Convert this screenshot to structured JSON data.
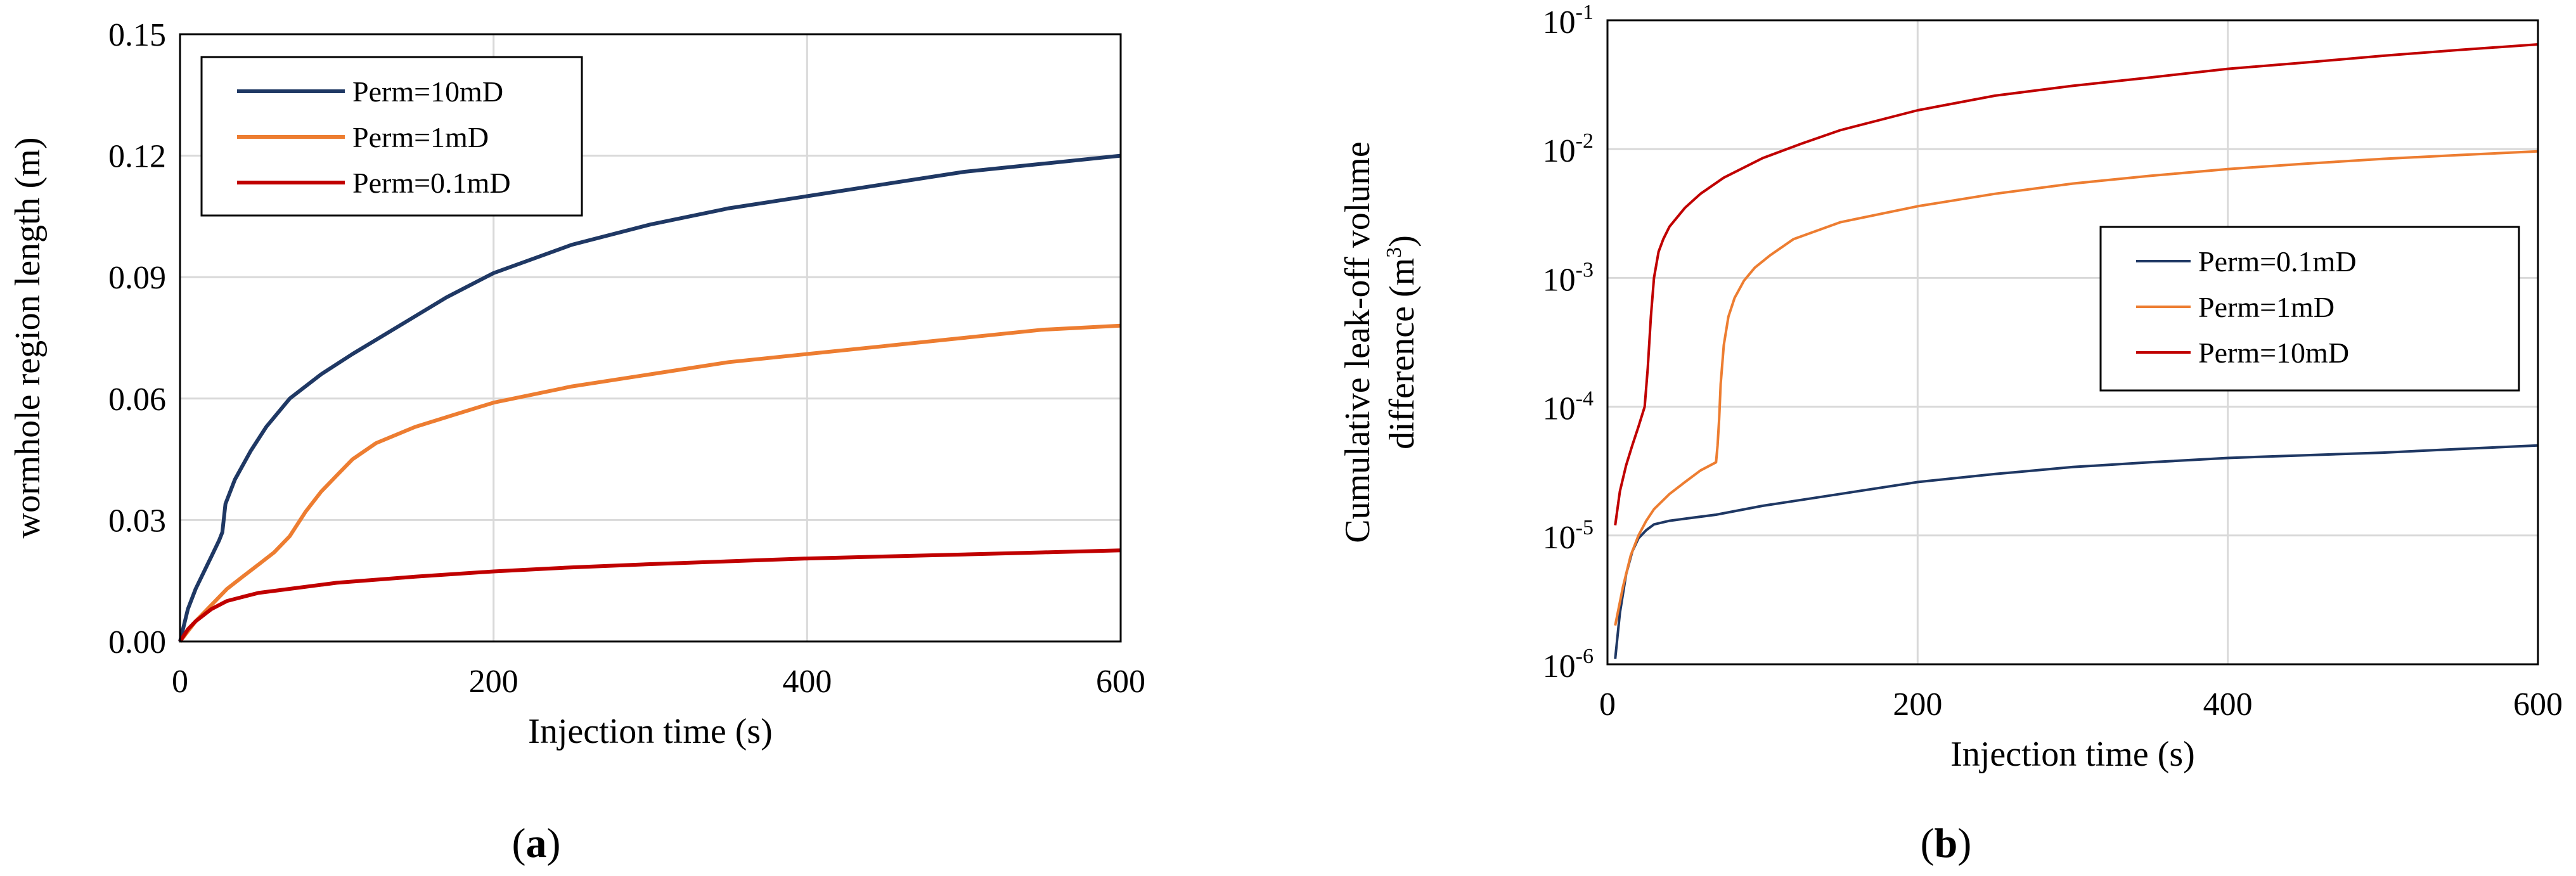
{
  "chart_data": [
    {
      "type": "line",
      "panel": "a",
      "panel_label": "a",
      "title": "",
      "xlabel": "Injection time (s)",
      "ylabel": "wormhole region length (m)",
      "xlim": [
        0,
        600
      ],
      "ylim": [
        0,
        0.15
      ],
      "yscale": "linear",
      "grid": true,
      "legend_position": "top-left",
      "x_ticks": [
        0,
        200,
        400,
        600
      ],
      "x_tick_labels": [
        "0",
        "200",
        "400",
        "600"
      ],
      "y_ticks": [
        0,
        0.03,
        0.06,
        0.09,
        0.12,
        0.15
      ],
      "y_tick_labels": [
        "0.00",
        "0.03",
        "0.06",
        "0.09",
        "0.12",
        "0.15"
      ],
      "series": [
        {
          "name": "Perm=10mD",
          "color": "#1f3864",
          "x": [
            0,
            5,
            10,
            15,
            20,
            25,
            27,
            29,
            35,
            45,
            55,
            70,
            90,
            110,
            140,
            170,
            200,
            250,
            300,
            350,
            400,
            450,
            500,
            550,
            600
          ],
          "y": [
            0,
            0.008,
            0.013,
            0.017,
            0.021,
            0.025,
            0.027,
            0.034,
            0.04,
            0.047,
            0.053,
            0.06,
            0.066,
            0.071,
            0.078,
            0.085,
            0.091,
            0.098,
            0.103,
            0.107,
            0.11,
            0.113,
            0.116,
            0.118,
            0.12
          ]
        },
        {
          "name": "Perm=1mD",
          "color": "#ed7d31",
          "x": [
            0,
            10,
            20,
            30,
            40,
            50,
            60,
            70,
            75,
            80,
            90,
            100,
            110,
            125,
            150,
            175,
            200,
            250,
            300,
            350,
            400,
            450,
            500,
            550,
            600
          ],
          "y": [
            0,
            0.005,
            0.009,
            0.013,
            0.016,
            0.019,
            0.022,
            0.026,
            0.029,
            0.032,
            0.037,
            0.041,
            0.045,
            0.049,
            0.053,
            0.056,
            0.059,
            0.063,
            0.066,
            0.069,
            0.071,
            0.073,
            0.075,
            0.077,
            0.078
          ]
        },
        {
          "name": "Perm=0.1mD",
          "color": "#c00000",
          "x": [
            0,
            5,
            10,
            20,
            30,
            40,
            50,
            70,
            100,
            150,
            200,
            250,
            300,
            350,
            400,
            450,
            500,
            550,
            600
          ],
          "y": [
            0,
            0.003,
            0.005,
            0.008,
            0.01,
            0.011,
            0.012,
            0.013,
            0.0145,
            0.016,
            0.0173,
            0.0183,
            0.0191,
            0.0198,
            0.0205,
            0.021,
            0.0215,
            0.022,
            0.0225
          ]
        }
      ]
    },
    {
      "type": "line",
      "panel": "b",
      "panel_label": "b",
      "title": "",
      "xlabel": "Injection time (s)",
      "ylabel_line1": "Cumulative leak-off volume",
      "ylabel_line2": "difference  (m",
      "ylabel_sup": "3",
      "ylabel_close": ")",
      "xlim": [
        0,
        600
      ],
      "ylim": [
        1e-06,
        0.1
      ],
      "yscale": "log",
      "grid": true,
      "legend_position": "middle-right",
      "x_ticks": [
        0,
        200,
        400,
        600
      ],
      "x_tick_labels": [
        "0",
        "200",
        "400",
        "600"
      ],
      "y_ticks": [
        1e-06,
        1e-05,
        0.0001,
        0.001,
        0.01,
        0.1
      ],
      "y_tick_base": "10",
      "y_tick_exponents": [
        "-6",
        "-5",
        "-4",
        "-3",
        "-2",
        "-1"
      ],
      "series": [
        {
          "name": "Perm=0.1mD",
          "color": "#1f3864",
          "x": [
            5,
            8,
            12,
            16,
            20,
            25,
            30,
            40,
            50,
            70,
            100,
            150,
            200,
            250,
            300,
            350,
            400,
            450,
            500,
            550,
            600
          ],
          "y": [
            1.1e-06,
            2.5e-06,
            5e-06,
            7.5e-06,
            9.5e-06,
            1.1e-05,
            1.22e-05,
            1.3e-05,
            1.35e-05,
            1.45e-05,
            1.7e-05,
            2.1e-05,
            2.6e-05,
            3e-05,
            3.4e-05,
            3.7e-05,
            4e-05,
            4.2e-05,
            4.4e-05,
            4.7e-05,
            5e-05
          ]
        },
        {
          "name": "Perm=1mD",
          "color": "#ed7d31",
          "x": [
            5,
            10,
            15,
            20,
            25,
            30,
            40,
            50,
            60,
            70,
            71,
            72,
            73,
            75,
            78,
            82,
            88,
            95,
            105,
            120,
            150,
            200,
            250,
            300,
            350,
            400,
            450,
            500,
            550,
            600
          ],
          "y": [
            2e-06,
            4e-06,
            7e-06,
            1e-05,
            1.3e-05,
            1.6e-05,
            2.1e-05,
            2.6e-05,
            3.2e-05,
            3.7e-05,
            5e-05,
            8e-05,
            0.00015,
            0.0003,
            0.0005,
            0.0007,
            0.00095,
            0.0012,
            0.0015,
            0.002,
            0.0027,
            0.0036,
            0.0045,
            0.0054,
            0.0062,
            0.007,
            0.0077,
            0.0084,
            0.009,
            0.0096
          ]
        },
        {
          "name": "Perm=10mD",
          "color": "#c00000",
          "x": [
            5,
            8,
            12,
            16,
            20,
            24,
            26,
            28,
            30,
            33,
            36,
            40,
            50,
            60,
            75,
            100,
            125,
            150,
            200,
            250,
            300,
            350,
            400,
            450,
            500,
            550,
            600
          ],
          "y": [
            1.2e-05,
            2.2e-05,
            3.5e-05,
            5e-05,
            7e-05,
            0.0001,
            0.0002,
            0.0005,
            0.001,
            0.0016,
            0.002,
            0.0025,
            0.0035,
            0.0045,
            0.006,
            0.0085,
            0.011,
            0.014,
            0.02,
            0.026,
            0.031,
            0.036,
            0.042,
            0.047,
            0.053,
            0.059,
            0.065
          ]
        }
      ]
    }
  ]
}
